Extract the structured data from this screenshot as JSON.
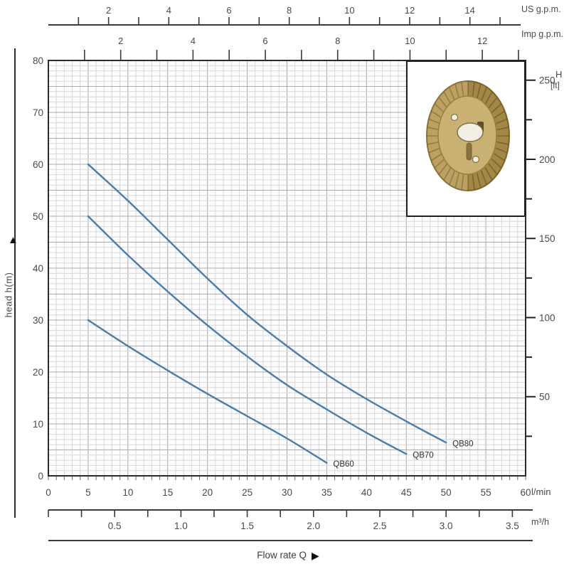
{
  "figure": {
    "bg": "#ffffff",
    "curve_color": "#4a7ea8",
    "grid_minor_color": "#d7d7db",
    "grid_major_color": "#ababaf",
    "axis_color": "#3a3a3a",
    "text_color": "#4a4a4a"
  },
  "icons": {
    "up_arrow": "▲",
    "right_arrow": "▶"
  },
  "axes": {
    "us_gpm": {
      "unit": "US g.p.m.",
      "labels": [
        2,
        4,
        6,
        8,
        10,
        12,
        14
      ]
    },
    "imp_gpm": {
      "unit": "Imp g.p.m.",
      "labels": [
        2,
        4,
        6,
        8,
        10,
        12
      ]
    },
    "head_m": {
      "title": "head h(m)",
      "labels": [
        0,
        10,
        20,
        30,
        40,
        50,
        60,
        70,
        80
      ]
    },
    "right_ft": {
      "title": "H",
      "unit": "[ft]",
      "labels": [
        50,
        100,
        150,
        200,
        250
      ]
    },
    "l_min": {
      "unit": "l/min",
      "labels": [
        0,
        5,
        10,
        15,
        20,
        25,
        30,
        35,
        40,
        45,
        50,
        55,
        60
      ]
    },
    "m3_h": {
      "unit": "m³/h",
      "labels": [
        "0.5",
        "1.0",
        "1.5",
        "2.0",
        "2.5",
        "3.0",
        "3.5"
      ]
    },
    "flow": {
      "title": "Flow rate Q"
    }
  },
  "chart_data": {
    "type": "line",
    "title": "",
    "xlabel": "Flow rate Q",
    "ylabel": "head h(m)",
    "x_unit_primary": "l/min",
    "x_units_secondary": [
      "US g.p.m.",
      "Imp g.p.m.",
      "m³/h"
    ],
    "y_unit_primary": "m",
    "y_unit_secondary": "ft",
    "xlim": [
      0,
      60
    ],
    "ylim": [
      0,
      80
    ],
    "grid": "on",
    "legend_position": "curve-end-labels",
    "series": [
      {
        "name": "QB60",
        "points": [
          [
            5,
            30
          ],
          [
            10,
            25
          ],
          [
            15,
            20.3
          ],
          [
            20,
            15.8
          ],
          [
            25,
            11.5
          ],
          [
            30,
            7.2
          ],
          [
            35,
            2.5
          ]
        ]
      },
      {
        "name": "QB70",
        "points": [
          [
            5,
            50
          ],
          [
            10,
            42.5
          ],
          [
            15,
            35.5
          ],
          [
            20,
            29
          ],
          [
            25,
            23
          ],
          [
            30,
            17.5
          ],
          [
            35,
            12.8
          ],
          [
            40,
            8.3
          ],
          [
            45,
            4.2
          ]
        ]
      },
      {
        "name": "QB80",
        "points": [
          [
            5,
            60
          ],
          [
            10,
            53
          ],
          [
            15,
            45.5
          ],
          [
            20,
            38
          ],
          [
            25,
            31
          ],
          [
            30,
            25
          ],
          [
            35,
            19.5
          ],
          [
            40,
            14.8
          ],
          [
            45,
            10.5
          ],
          [
            50,
            6.4
          ]
        ]
      }
    ]
  },
  "impeller": {
    "colors": {
      "ring": "#b5974e",
      "ring_edge": "#85682f",
      "hub": "#c8b172",
      "tooth_line": "#6e5830",
      "hole_fill": "#f3efe4",
      "hole_stroke": "#82724a",
      "notch": "#5e4e2b",
      "slot": "#8a7140"
    }
  }
}
